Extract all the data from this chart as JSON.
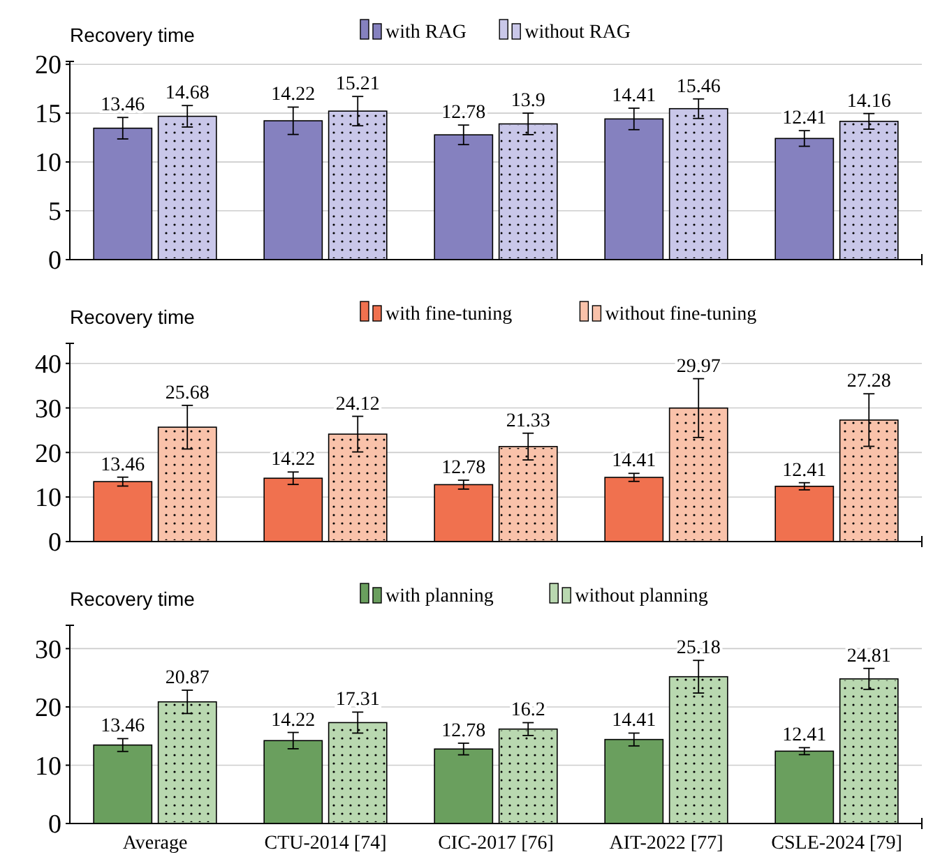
{
  "chart_data": [
    {
      "type": "bar",
      "ylabel": "Recovery time",
      "categories": [
        null,
        null,
        null,
        null,
        null
      ],
      "ylim": [
        0,
        20.3
      ],
      "yticks": [
        0,
        5,
        10,
        15,
        20
      ],
      "grid": "y",
      "legend": "top",
      "tick_labels": "y",
      "series": [
        {
          "name": "with RAG",
          "color": "#8581bf",
          "values": [
            13.46,
            14.22,
            12.78,
            14.41,
            12.41
          ],
          "value_labels": [
            "13.46",
            "14.22",
            "12.78",
            "14.41",
            "12.41"
          ],
          "errors": [
            1.1,
            1.4,
            1.0,
            1.1,
            0.8
          ]
        },
        {
          "name": "without RAG",
          "color": "#c9c7e9",
          "values": [
            14.68,
            15.21,
            13.9,
            15.46,
            14.16
          ],
          "value_labels": [
            "14.68",
            "15.21",
            "13.9",
            "15.46",
            "14.16"
          ],
          "errors": [
            1.1,
            1.5,
            1.1,
            1.0,
            0.8
          ]
        }
      ]
    },
    {
      "type": "bar",
      "ylabel": "Recovery time",
      "categories": [
        null,
        null,
        null,
        null,
        null
      ],
      "ylim": [
        0,
        44.5
      ],
      "yticks": [
        0,
        10,
        20,
        30,
        40
      ],
      "grid": "y",
      "legend": "top",
      "tick_labels": "y",
      "series": [
        {
          "name": "with fine-tuning",
          "color": "#f0714f",
          "values": [
            13.46,
            14.22,
            12.78,
            14.41,
            12.41
          ],
          "value_labels": [
            "13.46",
            "14.22",
            "12.78",
            "14.41",
            "12.41"
          ],
          "errors": [
            1.0,
            1.4,
            1.0,
            0.9,
            0.8
          ]
        },
        {
          "name": "without fine-tuning",
          "color": "#f9c2aa",
          "values": [
            25.68,
            24.12,
            21.33,
            29.97,
            27.28
          ],
          "value_labels": [
            "25.68",
            "24.12",
            "21.33",
            "29.97",
            "27.28"
          ],
          "errors": [
            4.9,
            4.0,
            3.0,
            6.6,
            5.9
          ]
        }
      ]
    },
    {
      "type": "bar",
      "ylabel": "Recovery time",
      "categories": [
        "Average",
        "CTU-2014 [74]",
        "CIC-2017 [76]",
        "AIT-2022 [77]",
        "CSLE-2024 [79]"
      ],
      "ylim": [
        0,
        34
      ],
      "yticks": [
        0,
        10,
        20,
        30
      ],
      "grid": "y",
      "legend": "top",
      "data_labels": true,
      "series": [
        {
          "name": "with planning",
          "color": "#6a9f5e",
          "values": [
            13.46,
            14.22,
            12.78,
            14.41,
            12.41
          ],
          "errors": [
            1.1,
            1.4,
            1.0,
            1.1,
            0.6
          ]
        },
        {
          "name": "without planning",
          "color": "#b9d8b0",
          "values": [
            20.87,
            17.31,
            16.2,
            25.18,
            24.81
          ],
          "errors": [
            2.0,
            1.8,
            1.1,
            2.8,
            1.8
          ]
        }
      ]
    }
  ]
}
